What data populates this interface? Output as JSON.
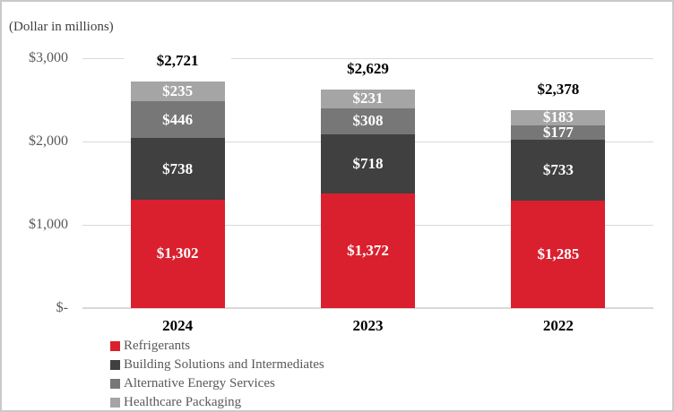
{
  "note": "(Dollar in millions)",
  "chart_data": {
    "type": "bar",
    "stacked": true,
    "title": "(Dollar in millions)",
    "categories": [
      "2024",
      "2023",
      "2022"
    ],
    "series": [
      {
        "name": "Refrigerants",
        "color": "#da202e",
        "values": [
          1302,
          1372,
          1285
        ],
        "labels": [
          "$1,302",
          "$1,372",
          "$1,285"
        ]
      },
      {
        "name": "Building Solutions and Intermediates",
        "color": "#404040",
        "values": [
          738,
          718,
          733
        ],
        "labels": [
          "$738",
          "$718",
          "$733"
        ]
      },
      {
        "name": "Alternative Energy Services",
        "color": "#777777",
        "values": [
          446,
          308,
          177
        ],
        "labels": [
          "$446",
          "$308",
          "$177"
        ]
      },
      {
        "name": "Healthcare Packaging",
        "color": "#a5a5a5",
        "values": [
          235,
          231,
          183
        ],
        "labels": [
          "$235",
          "$231",
          "$183"
        ]
      }
    ],
    "totals": [
      2721,
      2629,
      2378
    ],
    "total_labels": [
      "$2,721",
      "$2,629",
      "$2,378"
    ],
    "y_ticks": [
      {
        "value": 0,
        "label": "$-"
      },
      {
        "value": 1000,
        "label": "$1,000"
      },
      {
        "value": 2000,
        "label": "$2,000"
      },
      {
        "value": 3000,
        "label": "$3,000"
      }
    ],
    "ylim": [
      0,
      3000
    ],
    "grid": true,
    "legend_position": "bottom-left",
    "colors": {
      "gridline": "#d9d9d9",
      "axis_label": "#595959",
      "total_label": "#000000",
      "segment_label": "#ffffff",
      "legend_text": "#595959",
      "note_text": "#3f3f3f"
    }
  }
}
